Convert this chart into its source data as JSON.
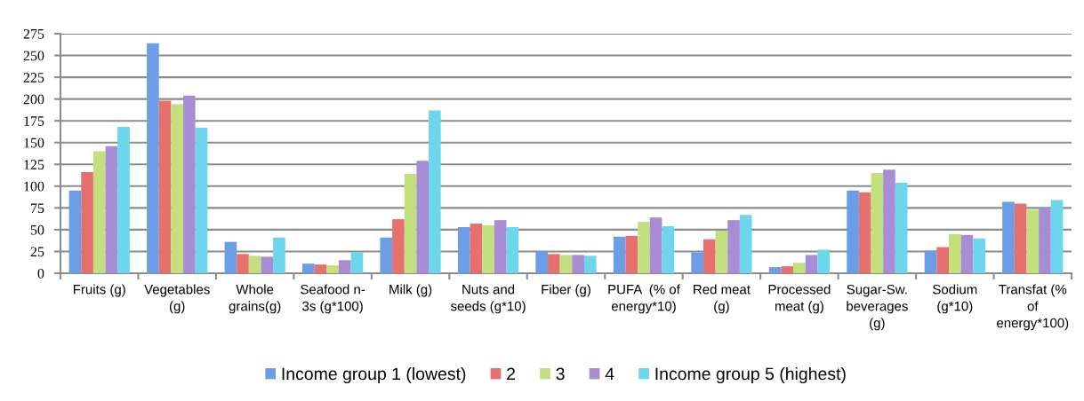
{
  "chart_data": {
    "type": "bar",
    "categories": [
      "Fruits (g)",
      "Vegetables (g)",
      "Whole grains(g)",
      "Seafood n-3s (g*100)",
      "Milk (g)",
      "Nuts and seeds (g*10)",
      "Fiber (g)",
      "PUFA  (% of energy*10)",
      "Red meat (g)",
      "Processed meat (g)",
      "Sugar-Sw. beverages (g)",
      "Sodium (g*10)",
      "Transfat (% of energy*100)"
    ],
    "series": [
      {
        "name": "Income group 1 (lowest)",
        "color": "#6b9ee6",
        "values": [
          95,
          264,
          36,
          11,
          41,
          53,
          25,
          42,
          24,
          7,
          95,
          26,
          82
        ]
      },
      {
        "name": "2",
        "color": "#e5706e",
        "values": [
          116,
          198,
          22,
          10,
          62,
          57,
          22,
          43,
          39,
          8,
          93,
          30,
          80
        ]
      },
      {
        "name": "3",
        "color": "#c4e07e",
        "values": [
          140,
          194,
          20,
          9,
          114,
          55,
          21,
          59,
          49,
          12,
          115,
          45,
          73
        ]
      },
      {
        "name": "4",
        "color": "#a98dd4",
        "values": [
          146,
          204,
          19,
          15,
          129,
          61,
          21,
          64,
          61,
          21,
          119,
          44,
          75
        ]
      },
      {
        "name": "Income group 5 (highest)",
        "color": "#6dd5ec",
        "values": [
          168,
          167,
          41,
          24,
          187,
          53,
          20,
          54,
          67,
          27,
          104,
          40,
          84
        ]
      }
    ],
    "ylim": [
      0,
      275
    ],
    "yticks": [
      0,
      25,
      50,
      75,
      100,
      125,
      150,
      175,
      200,
      225,
      250,
      275
    ],
    "grid": "y",
    "legend": "bottom"
  }
}
